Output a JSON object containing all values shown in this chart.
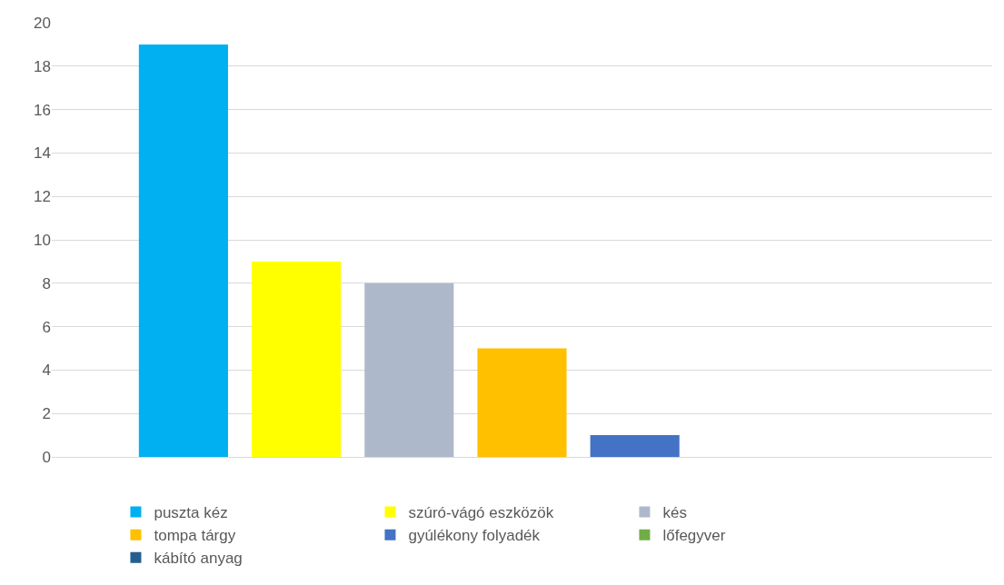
{
  "chart_data": {
    "type": "bar",
    "categories": [
      null
    ],
    "series": [
      {
        "name": "puszta kéz",
        "color": "#00b0f0",
        "values": [
          19
        ]
      },
      {
        "name": "szúró-vágó eszközök",
        "color": "#ffff00",
        "values": [
          9
        ]
      },
      {
        "name": "kés",
        "color": "#adb9ca",
        "values": [
          8
        ]
      },
      {
        "name": "tompa tárgy",
        "color": "#ffc000",
        "values": [
          5
        ]
      },
      {
        "name": "gyúlékony folyadék",
        "color": "#4472c4",
        "values": [
          1
        ]
      },
      {
        "name": "lőfegyver",
        "color": "#70ad47",
        "values": [
          0
        ]
      },
      {
        "name": "kábító anyag",
        "color": "#255e91",
        "values": [
          0
        ]
      }
    ],
    "ylim": [
      0,
      20
    ],
    "yticks": [
      0,
      2,
      4,
      6,
      8,
      10,
      12,
      14,
      16,
      18,
      20
    ],
    "grid": "y",
    "legend": "bottom"
  }
}
